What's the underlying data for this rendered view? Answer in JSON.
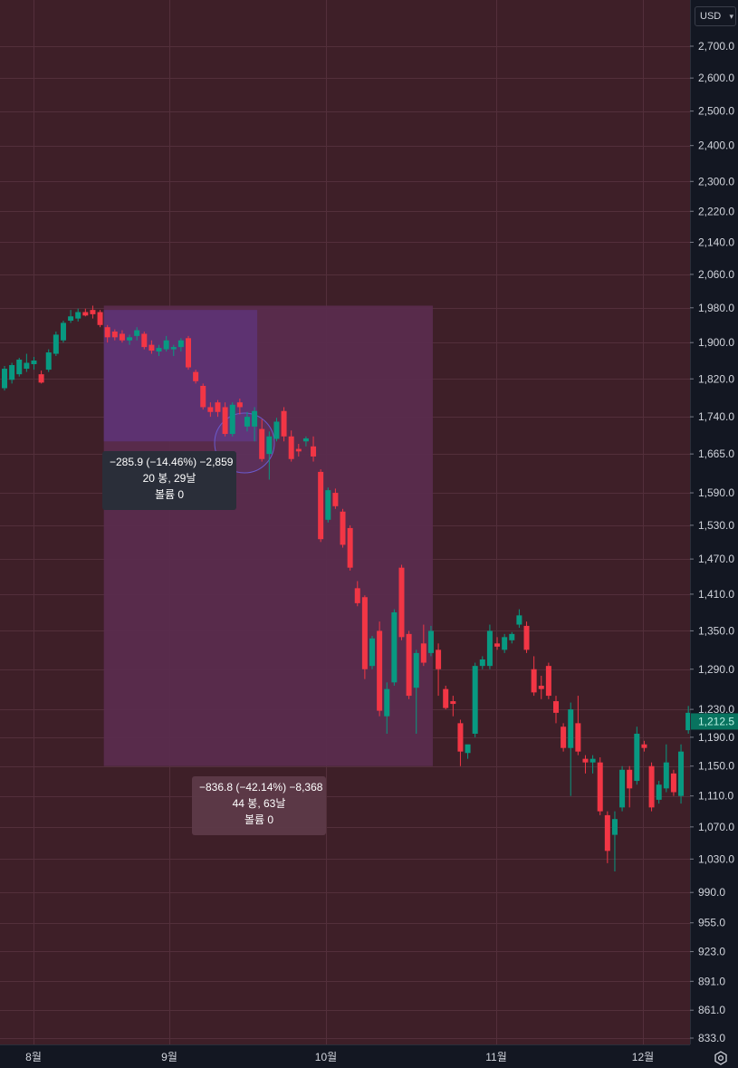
{
  "currency": {
    "label": "USD",
    "chevron_icon": "chevron-down-icon"
  },
  "last_price_label": "1,212.5",
  "colors": {
    "background": "#3e1f28",
    "up": "#089981",
    "down": "#f23645",
    "measure_outer": "#5a2c4e",
    "measure_inner": "#5e3373",
    "axis_panel": "#131722"
  },
  "measure_inner": {
    "line1": "−285.9 (−14.46%) −2,859",
    "line2": "20 봉, 29날",
    "line3": "볼륨 0"
  },
  "measure_outer": {
    "line1": "−836.8 (−42.14%) −8,368",
    "line2": "44 봉, 63날",
    "line3": "볼륨 0"
  },
  "settings_icon": "settings-icon",
  "chart_data": {
    "type": "candlestick",
    "title": "",
    "x_ticks": [
      "8월",
      "9월",
      "10월",
      "11월",
      "12월"
    ],
    "y_ticks": [
      {
        "v": 2700,
        "label": "2,700.0"
      },
      {
        "v": 2600,
        "label": "2,600.0"
      },
      {
        "v": 2500,
        "label": "2,500.0"
      },
      {
        "v": 2400,
        "label": "2,400.0"
      },
      {
        "v": 2300,
        "label": "2,300.0"
      },
      {
        "v": 2220,
        "label": "2,220.0"
      },
      {
        "v": 2140,
        "label": "2,140.0"
      },
      {
        "v": 2060,
        "label": "2,060.0"
      },
      {
        "v": 1980,
        "label": "1,980.0"
      },
      {
        "v": 1900,
        "label": "1,900.0"
      },
      {
        "v": 1820,
        "label": "1,820.0"
      },
      {
        "v": 1740,
        "label": "1,740.0"
      },
      {
        "v": 1665,
        "label": "1,665.0"
      },
      {
        "v": 1590,
        "label": "1,590.0"
      },
      {
        "v": 1530,
        "label": "1,530.0"
      },
      {
        "v": 1470,
        "label": "1,470.0"
      },
      {
        "v": 1410,
        "label": "1,410.0"
      },
      {
        "v": 1350,
        "label": "1,350.0"
      },
      {
        "v": 1290,
        "label": "1,290.0"
      },
      {
        "v": 1230,
        "label": "1,230.0"
      },
      {
        "v": 1190,
        "label": "1,190.0"
      },
      {
        "v": 1150,
        "label": "1,150.0"
      },
      {
        "v": 1110,
        "label": "1,110.0"
      },
      {
        "v": 1070,
        "label": "1,070.0"
      },
      {
        "v": 1030,
        "label": "1,030.0"
      },
      {
        "v": 990,
        "label": "990.0"
      },
      {
        "v": 955,
        "label": "955.0"
      },
      {
        "v": 923,
        "label": "923.0"
      },
      {
        "v": 891,
        "label": "891.0"
      },
      {
        "v": 861,
        "label": "861.0"
      },
      {
        "v": 833,
        "label": "833.0"
      }
    ],
    "y_scale": "log",
    "last_price": 1212.5,
    "measure_inner": {
      "start_bar": 14,
      "bars": 20,
      "from": 1975,
      "to": 1690
    },
    "measure_outer": {
      "start_bar": 14,
      "bars": 44,
      "from": 1985,
      "to": 1150
    },
    "candles": [
      {
        "o": 1800,
        "h": 1848,
        "l": 1795,
        "c": 1842
      },
      {
        "o": 1818,
        "h": 1855,
        "l": 1810,
        "c": 1850
      },
      {
        "o": 1830,
        "h": 1866,
        "l": 1825,
        "c": 1862
      },
      {
        "o": 1842,
        "h": 1875,
        "l": 1835,
        "c": 1855
      },
      {
        "o": 1852,
        "h": 1868,
        "l": 1840,
        "c": 1860
      },
      {
        "o": 1830,
        "h": 1838,
        "l": 1810,
        "c": 1812
      },
      {
        "o": 1840,
        "h": 1885,
        "l": 1835,
        "c": 1878
      },
      {
        "o": 1875,
        "h": 1925,
        "l": 1870,
        "c": 1918
      },
      {
        "o": 1905,
        "h": 1950,
        "l": 1900,
        "c": 1945
      },
      {
        "o": 1950,
        "h": 1975,
        "l": 1945,
        "c": 1960
      },
      {
        "o": 1955,
        "h": 1978,
        "l": 1948,
        "c": 1970
      },
      {
        "o": 1970,
        "h": 1978,
        "l": 1960,
        "c": 1962
      },
      {
        "o": 1975,
        "h": 1985,
        "l": 1955,
        "c": 1965
      },
      {
        "o": 1970,
        "h": 1975,
        "l": 1935,
        "c": 1940
      },
      {
        "o": 1935,
        "h": 1940,
        "l": 1900,
        "c": 1912
      },
      {
        "o": 1925,
        "h": 1930,
        "l": 1905,
        "c": 1912
      },
      {
        "o": 1920,
        "h": 1928,
        "l": 1900,
        "c": 1905
      },
      {
        "o": 1905,
        "h": 1918,
        "l": 1895,
        "c": 1912
      },
      {
        "o": 1915,
        "h": 1935,
        "l": 1905,
        "c": 1928
      },
      {
        "o": 1920,
        "h": 1925,
        "l": 1885,
        "c": 1890
      },
      {
        "o": 1895,
        "h": 1905,
        "l": 1875,
        "c": 1882
      },
      {
        "o": 1880,
        "h": 1895,
        "l": 1870,
        "c": 1888
      },
      {
        "o": 1885,
        "h": 1915,
        "l": 1880,
        "c": 1905
      },
      {
        "o": 1885,
        "h": 1895,
        "l": 1870,
        "c": 1890
      },
      {
        "o": 1890,
        "h": 1910,
        "l": 1880,
        "c": 1905
      },
      {
        "o": 1910,
        "h": 1915,
        "l": 1840,
        "c": 1845
      },
      {
        "o": 1835,
        "h": 1840,
        "l": 1810,
        "c": 1815
      },
      {
        "o": 1805,
        "h": 1810,
        "l": 1755,
        "c": 1760
      },
      {
        "o": 1760,
        "h": 1770,
        "l": 1740,
        "c": 1750
      },
      {
        "o": 1770,
        "h": 1775,
        "l": 1740,
        "c": 1750
      },
      {
        "o": 1760,
        "h": 1770,
        "l": 1700,
        "c": 1705
      },
      {
        "o": 1705,
        "h": 1770,
        "l": 1700,
        "c": 1765
      },
      {
        "o": 1770,
        "h": 1778,
        "l": 1745,
        "c": 1760
      },
      {
        "o": 1720,
        "h": 1750,
        "l": 1710,
        "c": 1740
      },
      {
        "o": 1720,
        "h": 1760,
        "l": 1690,
        "c": 1752
      },
      {
        "o": 1715,
        "h": 1735,
        "l": 1650,
        "c": 1655
      },
      {
        "o": 1665,
        "h": 1710,
        "l": 1615,
        "c": 1700
      },
      {
        "o": 1695,
        "h": 1738,
        "l": 1690,
        "c": 1730
      },
      {
        "o": 1752,
        "h": 1760,
        "l": 1690,
        "c": 1700
      },
      {
        "o": 1700,
        "h": 1712,
        "l": 1650,
        "c": 1655
      },
      {
        "o": 1675,
        "h": 1685,
        "l": 1660,
        "c": 1670
      },
      {
        "o": 1690,
        "h": 1700,
        "l": 1680,
        "c": 1696
      },
      {
        "o": 1680,
        "h": 1700,
        "l": 1650,
        "c": 1660
      },
      {
        "o": 1630,
        "h": 1635,
        "l": 1500,
        "c": 1505
      },
      {
        "o": 1540,
        "h": 1600,
        "l": 1535,
        "c": 1595
      },
      {
        "o": 1590,
        "h": 1598,
        "l": 1560,
        "c": 1565
      },
      {
        "o": 1555,
        "h": 1560,
        "l": 1490,
        "c": 1495
      },
      {
        "o": 1525,
        "h": 1530,
        "l": 1450,
        "c": 1455
      },
      {
        "o": 1420,
        "h": 1432,
        "l": 1390,
        "c": 1395
      },
      {
        "o": 1405,
        "h": 1408,
        "l": 1275,
        "c": 1290
      },
      {
        "o": 1295,
        "h": 1342,
        "l": 1290,
        "c": 1338
      },
      {
        "o": 1350,
        "h": 1365,
        "l": 1220,
        "c": 1228
      },
      {
        "o": 1220,
        "h": 1270,
        "l": 1195,
        "c": 1260
      },
      {
        "o": 1270,
        "h": 1385,
        "l": 1265,
        "c": 1380
      },
      {
        "o": 1455,
        "h": 1460,
        "l": 1335,
        "c": 1340
      },
      {
        "o": 1345,
        "h": 1350,
        "l": 1245,
        "c": 1250
      },
      {
        "o": 1262,
        "h": 1320,
        "l": 1195,
        "c": 1315
      },
      {
        "o": 1330,
        "h": 1360,
        "l": 1295,
        "c": 1300
      },
      {
        "o": 1315,
        "h": 1358,
        "l": 1310,
        "c": 1350
      },
      {
        "o": 1320,
        "h": 1330,
        "l": 1250,
        "c": 1290
      },
      {
        "o": 1260,
        "h": 1265,
        "l": 1230,
        "c": 1232
      },
      {
        "o": 1242,
        "h": 1250,
        "l": 1220,
        "c": 1238
      },
      {
        "o": 1210,
        "h": 1215,
        "l": 1150,
        "c": 1170
      },
      {
        "o": 1168,
        "h": 1178,
        "l": 1160,
        "c": 1180
      },
      {
        "o": 1195,
        "h": 1300,
        "l": 1190,
        "c": 1295
      },
      {
        "o": 1295,
        "h": 1310,
        "l": 1290,
        "c": 1305
      },
      {
        "o": 1295,
        "h": 1360,
        "l": 1290,
        "c": 1350
      },
      {
        "o": 1330,
        "h": 1340,
        "l": 1320,
        "c": 1325
      },
      {
        "o": 1320,
        "h": 1345,
        "l": 1315,
        "c": 1340
      },
      {
        "o": 1335,
        "h": 1348,
        "l": 1330,
        "c": 1345
      },
      {
        "o": 1360,
        "h": 1385,
        "l": 1355,
        "c": 1375
      },
      {
        "o": 1358,
        "h": 1365,
        "l": 1315,
        "c": 1320
      },
      {
        "o": 1290,
        "h": 1310,
        "l": 1250,
        "c": 1255
      },
      {
        "o": 1265,
        "h": 1280,
        "l": 1245,
        "c": 1260
      },
      {
        "o": 1295,
        "h": 1300,
        "l": 1245,
        "c": 1250
      },
      {
        "o": 1242,
        "h": 1250,
        "l": 1210,
        "c": 1225
      },
      {
        "o": 1205,
        "h": 1210,
        "l": 1170,
        "c": 1175
      },
      {
        "o": 1175,
        "h": 1240,
        "l": 1110,
        "c": 1230
      },
      {
        "o": 1210,
        "h": 1250,
        "l": 1165,
        "c": 1170
      },
      {
        "o": 1160,
        "h": 1165,
        "l": 1140,
        "c": 1155
      },
      {
        "o": 1155,
        "h": 1165,
        "l": 1140,
        "c": 1160
      },
      {
        "o": 1155,
        "h": 1162,
        "l": 1085,
        "c": 1090
      },
      {
        "o": 1085,
        "h": 1090,
        "l": 1025,
        "c": 1040
      },
      {
        "o": 1060,
        "h": 1090,
        "l": 1015,
        "c": 1080
      },
      {
        "o": 1095,
        "h": 1150,
        "l": 1090,
        "c": 1145
      },
      {
        "o": 1145,
        "h": 1150,
        "l": 1095,
        "c": 1120
      },
      {
        "o": 1130,
        "h": 1205,
        "l": 1125,
        "c": 1195
      },
      {
        "o": 1180,
        "h": 1185,
        "l": 1170,
        "c": 1175
      },
      {
        "o": 1150,
        "h": 1155,
        "l": 1090,
        "c": 1095
      },
      {
        "o": 1105,
        "h": 1130,
        "l": 1100,
        "c": 1125
      },
      {
        "o": 1120,
        "h": 1180,
        "l": 1115,
        "c": 1155
      },
      {
        "o": 1140,
        "h": 1145,
        "l": 1110,
        "c": 1115
      },
      {
        "o": 1110,
        "h": 1180,
        "l": 1100,
        "c": 1170
      },
      {
        "o": 1200,
        "h": 1235,
        "l": 1195,
        "c": 1225
      },
      {
        "o": 1225,
        "h": 1250,
        "l": 1205,
        "c": 1212.5
      }
    ]
  }
}
